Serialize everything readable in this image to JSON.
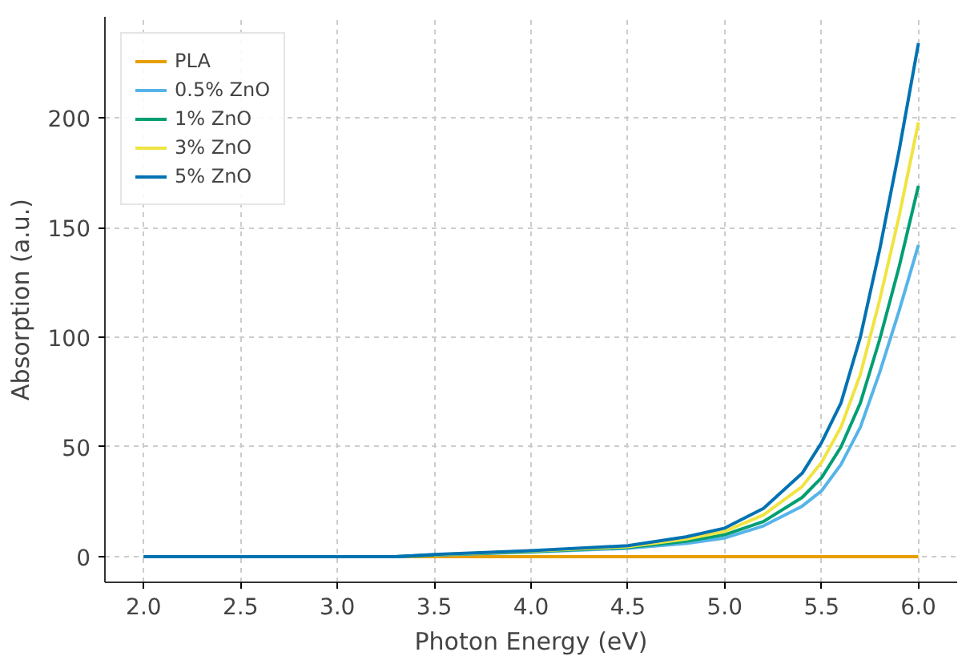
{
  "chart_data": {
    "type": "line",
    "xlabel": "Photon Energy (eV)",
    "ylabel": "Absorption (a.u.)",
    "x": [
      2.0,
      3.0,
      3.3,
      3.5,
      4.0,
      4.5,
      4.8,
      5.0,
      5.2,
      5.4,
      5.5,
      5.6,
      5.7,
      5.8,
      5.9,
      6.0
    ],
    "series": [
      {
        "name": "PLA",
        "color": "#e69f00",
        "values": [
          0,
          0,
          0,
          0,
          0,
          0,
          0,
          0,
          0,
          0,
          0,
          0,
          0,
          0,
          0,
          0
        ]
      },
      {
        "name": "0.5% ZnO",
        "color": "#56b4e9",
        "x": [
          3.3,
          3.5,
          4.0,
          4.5,
          4.8,
          5.0,
          5.2,
          5.4,
          5.5,
          5.6,
          5.7,
          5.8,
          5.9,
          6.0
        ],
        "values": [
          0,
          0.7,
          2.1,
          3.8,
          6,
          8.5,
          14,
          23,
          30,
          42,
          59,
          84,
          112,
          142
        ]
      },
      {
        "name": "1% ZnO",
        "color": "#009e73",
        "values": [
          0,
          0,
          0,
          0.8,
          2.3,
          4.2,
          7,
          10,
          16,
          27,
          36,
          50,
          70,
          99,
          132,
          169
        ]
      },
      {
        "name": "3% ZnO",
        "color": "#f0e442",
        "x": [
          3.5,
          4.0,
          4.5,
          4.8,
          5.0,
          5.2,
          5.4,
          5.5,
          5.6,
          5.7,
          5.8,
          5.9,
          6.0
        ],
        "values": [
          0.9,
          2.5,
          4.5,
          8,
          11.5,
          19,
          32,
          43,
          59,
          83,
          117,
          155,
          198
        ]
      },
      {
        "name": "5% ZnO",
        "color": "#0072b2",
        "values": [
          0,
          0,
          0,
          1,
          2.7,
          5,
          9,
          13,
          22,
          38,
          52,
          70,
          100,
          140,
          185,
          234
        ]
      }
    ],
    "xlim": [
      1.8,
      6.2
    ],
    "ylim": [
      -11.7,
      246
    ],
    "xticks": [
      {
        "value": 2.0,
        "label": "2.0"
      },
      {
        "value": 2.5,
        "label": "2.5"
      },
      {
        "value": 3.0,
        "label": "3.0"
      },
      {
        "value": 3.5,
        "label": "3.5"
      },
      {
        "value": 4.0,
        "label": "4.0"
      },
      {
        "value": 4.5,
        "label": "4.5"
      },
      {
        "value": 5.0,
        "label": "5.0"
      },
      {
        "value": 5.5,
        "label": "5.5"
      },
      {
        "value": 6.0,
        "label": "6.0"
      }
    ],
    "yticks": [
      0,
      50,
      100,
      150,
      200
    ],
    "grid": true,
    "legend": "top left",
    "line_style": "solid"
  }
}
